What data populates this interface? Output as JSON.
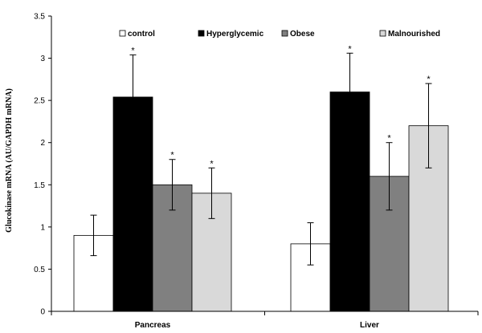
{
  "chart_data": {
    "type": "bar",
    "title": "",
    "xlabel": "",
    "ylabel": "Glucokinase mRNA (AU/GAPDH mRNA)",
    "ylim": [
      0,
      3.5
    ],
    "yticks": [
      "0",
      "0.5",
      "1",
      "1.5",
      "2",
      "2.5",
      "3",
      "3.5"
    ],
    "categories": [
      "Pancreas",
      "Liver"
    ],
    "legend_position": "top",
    "grid": false,
    "series": [
      {
        "name": "control",
        "color": "#ffffff",
        "values": [
          0.9,
          0.8
        ],
        "errors": [
          0.24,
          0.25
        ],
        "significant": [
          false,
          false
        ]
      },
      {
        "name": "Hyperglycemic",
        "color": "#000000",
        "values": [
          2.54,
          2.6
        ],
        "errors": [
          0.5,
          0.46
        ],
        "significant": [
          true,
          true
        ]
      },
      {
        "name": "Obese",
        "color": "#808080",
        "values": [
          1.5,
          1.6
        ],
        "errors": [
          0.3,
          0.4
        ],
        "significant": [
          true,
          true
        ]
      },
      {
        "name": "Malnourished",
        "color": "#d9d9d9",
        "values": [
          1.4,
          2.2
        ],
        "errors": [
          0.3,
          0.5
        ],
        "significant": [
          true,
          true
        ]
      }
    ],
    "significance_marker": "*"
  }
}
